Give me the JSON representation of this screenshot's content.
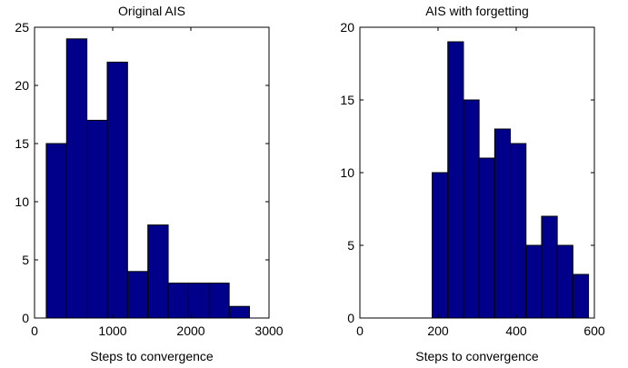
{
  "chart_data": [
    {
      "type": "bar",
      "title": "Original AIS",
      "xlabel": "Steps to convergence",
      "ylabel": "",
      "xlim": [
        0,
        3000
      ],
      "ylim": [
        0,
        25
      ],
      "xticks": [
        0,
        1000,
        2000,
        3000
      ],
      "yticks": [
        0,
        5,
        10,
        15,
        20,
        25
      ],
      "bins": [
        {
          "x0": 150,
          "x1": 410,
          "value": 15
        },
        {
          "x0": 410,
          "x1": 670,
          "value": 24
        },
        {
          "x0": 670,
          "x1": 930,
          "value": 17
        },
        {
          "x0": 930,
          "x1": 1190,
          "value": 22
        },
        {
          "x0": 1190,
          "x1": 1450,
          "value": 4
        },
        {
          "x0": 1450,
          "x1": 1710,
          "value": 8
        },
        {
          "x0": 1710,
          "x1": 1970,
          "value": 3
        },
        {
          "x0": 1970,
          "x1": 2230,
          "value": 3
        },
        {
          "x0": 2230,
          "x1": 2490,
          "value": 3
        },
        {
          "x0": 2490,
          "x1": 2750,
          "value": 1
        }
      ],
      "bar_color": "#00008B",
      "edge_color": "#000000",
      "grid": false
    },
    {
      "type": "bar",
      "title": "AIS with forgetting",
      "xlabel": "Steps to convergence",
      "ylabel": "",
      "xlim": [
        0,
        600
      ],
      "ylim": [
        0,
        20
      ],
      "xticks": [
        0,
        200,
        400,
        600
      ],
      "yticks": [
        0,
        5,
        10,
        15,
        20
      ],
      "bins": [
        {
          "x0": 185,
          "x1": 225,
          "value": 10
        },
        {
          "x0": 225,
          "x1": 265,
          "value": 19
        },
        {
          "x0": 265,
          "x1": 305,
          "value": 15
        },
        {
          "x0": 305,
          "x1": 345,
          "value": 11
        },
        {
          "x0": 345,
          "x1": 385,
          "value": 13
        },
        {
          "x0": 385,
          "x1": 425,
          "value": 12
        },
        {
          "x0": 425,
          "x1": 465,
          "value": 5
        },
        {
          "x0": 465,
          "x1": 505,
          "value": 7
        },
        {
          "x0": 505,
          "x1": 545,
          "value": 5
        },
        {
          "x0": 545,
          "x1": 585,
          "value": 3
        }
      ],
      "bar_color": "#00008B",
      "edge_color": "#000000",
      "grid": false
    }
  ]
}
